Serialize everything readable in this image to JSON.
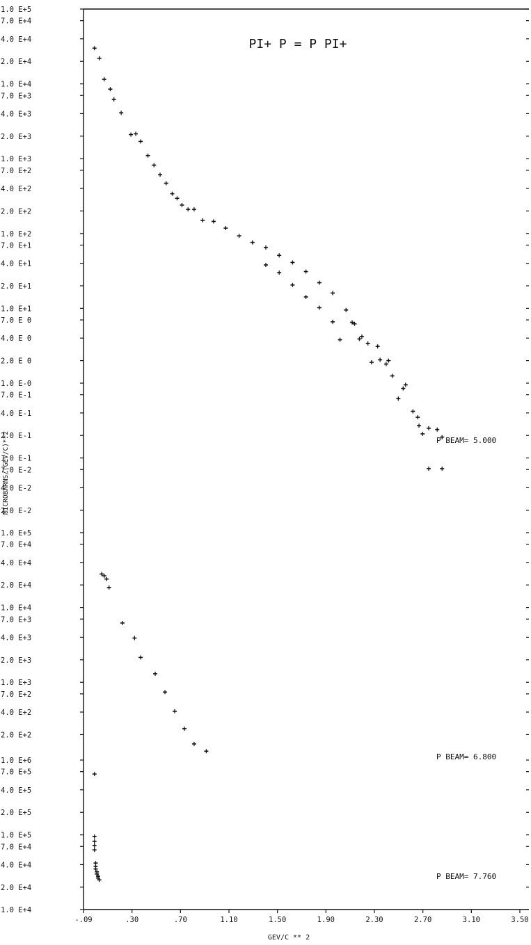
{
  "chart_data": {
    "type": "scatter",
    "title": "PI+ P = P PI+",
    "xlabel": "GEV/C ** 2",
    "ylabel": "MICROBARNS/(GEV/C)**2",
    "xlim": [
      -0.09,
      3.5
    ],
    "x_ticks": [
      "-.09",
      ".30",
      ".70",
      "1.10",
      "1.50",
      "1.90",
      "2.30",
      "2.70",
      "3.10",
      "3.50"
    ],
    "y_scale": "log",
    "y_tick_labels": [
      "1.0 E+5",
      "7.0 E+4",
      "4.0 E+4",
      "2.0 E+4",
      "1.0 E+4",
      "7.0 E+3",
      "4.0 E+3",
      "2.0 E+3",
      "1.0 E+3",
      "7.0 E+2",
      "4.0 E+2",
      "2.0 E+2",
      "1.0 E+2",
      "7.0 E+1",
      "4.0 E+1",
      "2.0 E+1",
      "1.0 E+1",
      "7.0 E 0",
      "4.0 E 0",
      "2.0 E 0",
      "1.0 E-0",
      "7.0 E-1",
      "4.0 E-1",
      "2.0 E-1",
      "1.0 E-1",
      "7.0 E-2",
      "4.0 E-2",
      "2.0 E-2",
      "1.0 E+5",
      "7.0 E+4",
      "4.0 E+4",
      "2.0 E+4",
      "1.0 E+4",
      "7.0 E+3",
      "4.0 E+3",
      "2.0 E+3",
      "1.0 E+3",
      "7.0 E+2",
      "4.0 E+2",
      "2.0 E+2",
      "1.0 E+6",
      "7.0 E+5",
      "4.0 E+5",
      "2.0 E+5",
      "1.0 E+5",
      "7.0 E+4",
      "4.0 E+4",
      "2.0 E+4",
      "1.0 E+4"
    ],
    "series": [
      {
        "name": "P BEAM= 5.000",
        "y_range": [
          0.01,
          100000
        ],
        "points": [
          {
            "x": 0.0,
            "y": 30000
          },
          {
            "x": 0.04,
            "y": 22000
          },
          {
            "x": 0.08,
            "y": 11500
          },
          {
            "x": 0.13,
            "y": 8500
          },
          {
            "x": 0.16,
            "y": 6200
          },
          {
            "x": 0.22,
            "y": 4100
          },
          {
            "x": 0.3,
            "y": 2100
          },
          {
            "x": 0.34,
            "y": 2150
          },
          {
            "x": 0.38,
            "y": 1700
          },
          {
            "x": 0.44,
            "y": 1100
          },
          {
            "x": 0.49,
            "y": 820
          },
          {
            "x": 0.54,
            "y": 610
          },
          {
            "x": 0.59,
            "y": 470
          },
          {
            "x": 0.64,
            "y": 340
          },
          {
            "x": 0.68,
            "y": 295
          },
          {
            "x": 0.72,
            "y": 240
          },
          {
            "x": 0.77,
            "y": 210
          },
          {
            "x": 0.82,
            "y": 210
          },
          {
            "x": 0.89,
            "y": 150
          },
          {
            "x": 0.98,
            "y": 145
          },
          {
            "x": 1.08,
            "y": 118
          },
          {
            "x": 1.19,
            "y": 93
          },
          {
            "x": 1.3,
            "y": 76
          },
          {
            "x": 1.41,
            "y": 65
          },
          {
            "x": 1.41,
            "y": 38
          },
          {
            "x": 1.52,
            "y": 51
          },
          {
            "x": 1.52,
            "y": 30
          },
          {
            "x": 1.63,
            "y": 41
          },
          {
            "x": 1.63,
            "y": 20.5
          },
          {
            "x": 1.74,
            "y": 31
          },
          {
            "x": 1.74,
            "y": 14.2
          },
          {
            "x": 1.85,
            "y": 22
          },
          {
            "x": 1.85,
            "y": 10.2
          },
          {
            "x": 1.96,
            "y": 16
          },
          {
            "x": 1.96,
            "y": 6.6
          },
          {
            "x": 2.07,
            "y": 9.5
          },
          {
            "x": 2.12,
            "y": 6.5
          },
          {
            "x": 2.14,
            "y": 6.2
          },
          {
            "x": 2.18,
            "y": 3.9
          },
          {
            "x": 2.2,
            "y": 4.2
          },
          {
            "x": 2.25,
            "y": 3.4
          },
          {
            "x": 2.02,
            "y": 3.8
          },
          {
            "x": 2.28,
            "y": 1.9
          },
          {
            "x": 2.33,
            "y": 3.1
          },
          {
            "x": 2.35,
            "y": 2.05
          },
          {
            "x": 2.4,
            "y": 1.8
          },
          {
            "x": 2.42,
            "y": 2.0
          },
          {
            "x": 2.45,
            "y": 1.25
          },
          {
            "x": 2.5,
            "y": 0.62
          },
          {
            "x": 2.54,
            "y": 0.85
          },
          {
            "x": 2.56,
            "y": 0.95
          },
          {
            "x": 2.62,
            "y": 0.42
          },
          {
            "x": 2.66,
            "y": 0.35
          },
          {
            "x": 2.67,
            "y": 0.27
          },
          {
            "x": 2.7,
            "y": 0.21
          },
          {
            "x": 2.75,
            "y": 0.25
          },
          {
            "x": 2.75,
            "y": 0.072
          },
          {
            "x": 2.82,
            "y": 0.24
          },
          {
            "x": 2.86,
            "y": 0.19
          },
          {
            "x": 2.86,
            "y": 0.072
          }
        ]
      },
      {
        "name": "P BEAM= 6.800",
        "y_range": [
          100,
          100000
        ],
        "points": [
          {
            "x": 0.06,
            "y": 28000
          },
          {
            "x": 0.08,
            "y": 26500
          },
          {
            "x": 0.1,
            "y": 24000
          },
          {
            "x": 0.12,
            "y": 18500
          },
          {
            "x": 0.23,
            "y": 6200
          },
          {
            "x": 0.33,
            "y": 3900
          },
          {
            "x": 0.38,
            "y": 2150
          },
          {
            "x": 0.5,
            "y": 1300
          },
          {
            "x": 0.58,
            "y": 740
          },
          {
            "x": 0.66,
            "y": 410
          },
          {
            "x": 0.74,
            "y": 240
          },
          {
            "x": 0.82,
            "y": 150
          },
          {
            "x": 0.92,
            "y": 120
          }
        ]
      },
      {
        "name": "P BEAM= 7.760",
        "y_range": [
          10000,
          1000000
        ],
        "points": [
          {
            "x": 0.0,
            "y": 650000
          },
          {
            "x": 0.0,
            "y": 95000
          },
          {
            "x": 0.0,
            "y": 82000
          },
          {
            "x": 0.0,
            "y": 72000
          },
          {
            "x": 0.0,
            "y": 63000
          },
          {
            "x": 0.01,
            "y": 42000
          },
          {
            "x": 0.01,
            "y": 38000
          },
          {
            "x": 0.01,
            "y": 35000
          },
          {
            "x": 0.02,
            "y": 32000
          },
          {
            "x": 0.02,
            "y": 30000
          },
          {
            "x": 0.03,
            "y": 28000
          },
          {
            "x": 0.03,
            "y": 26500
          },
          {
            "x": 0.04,
            "y": 25000
          }
        ]
      }
    ]
  }
}
